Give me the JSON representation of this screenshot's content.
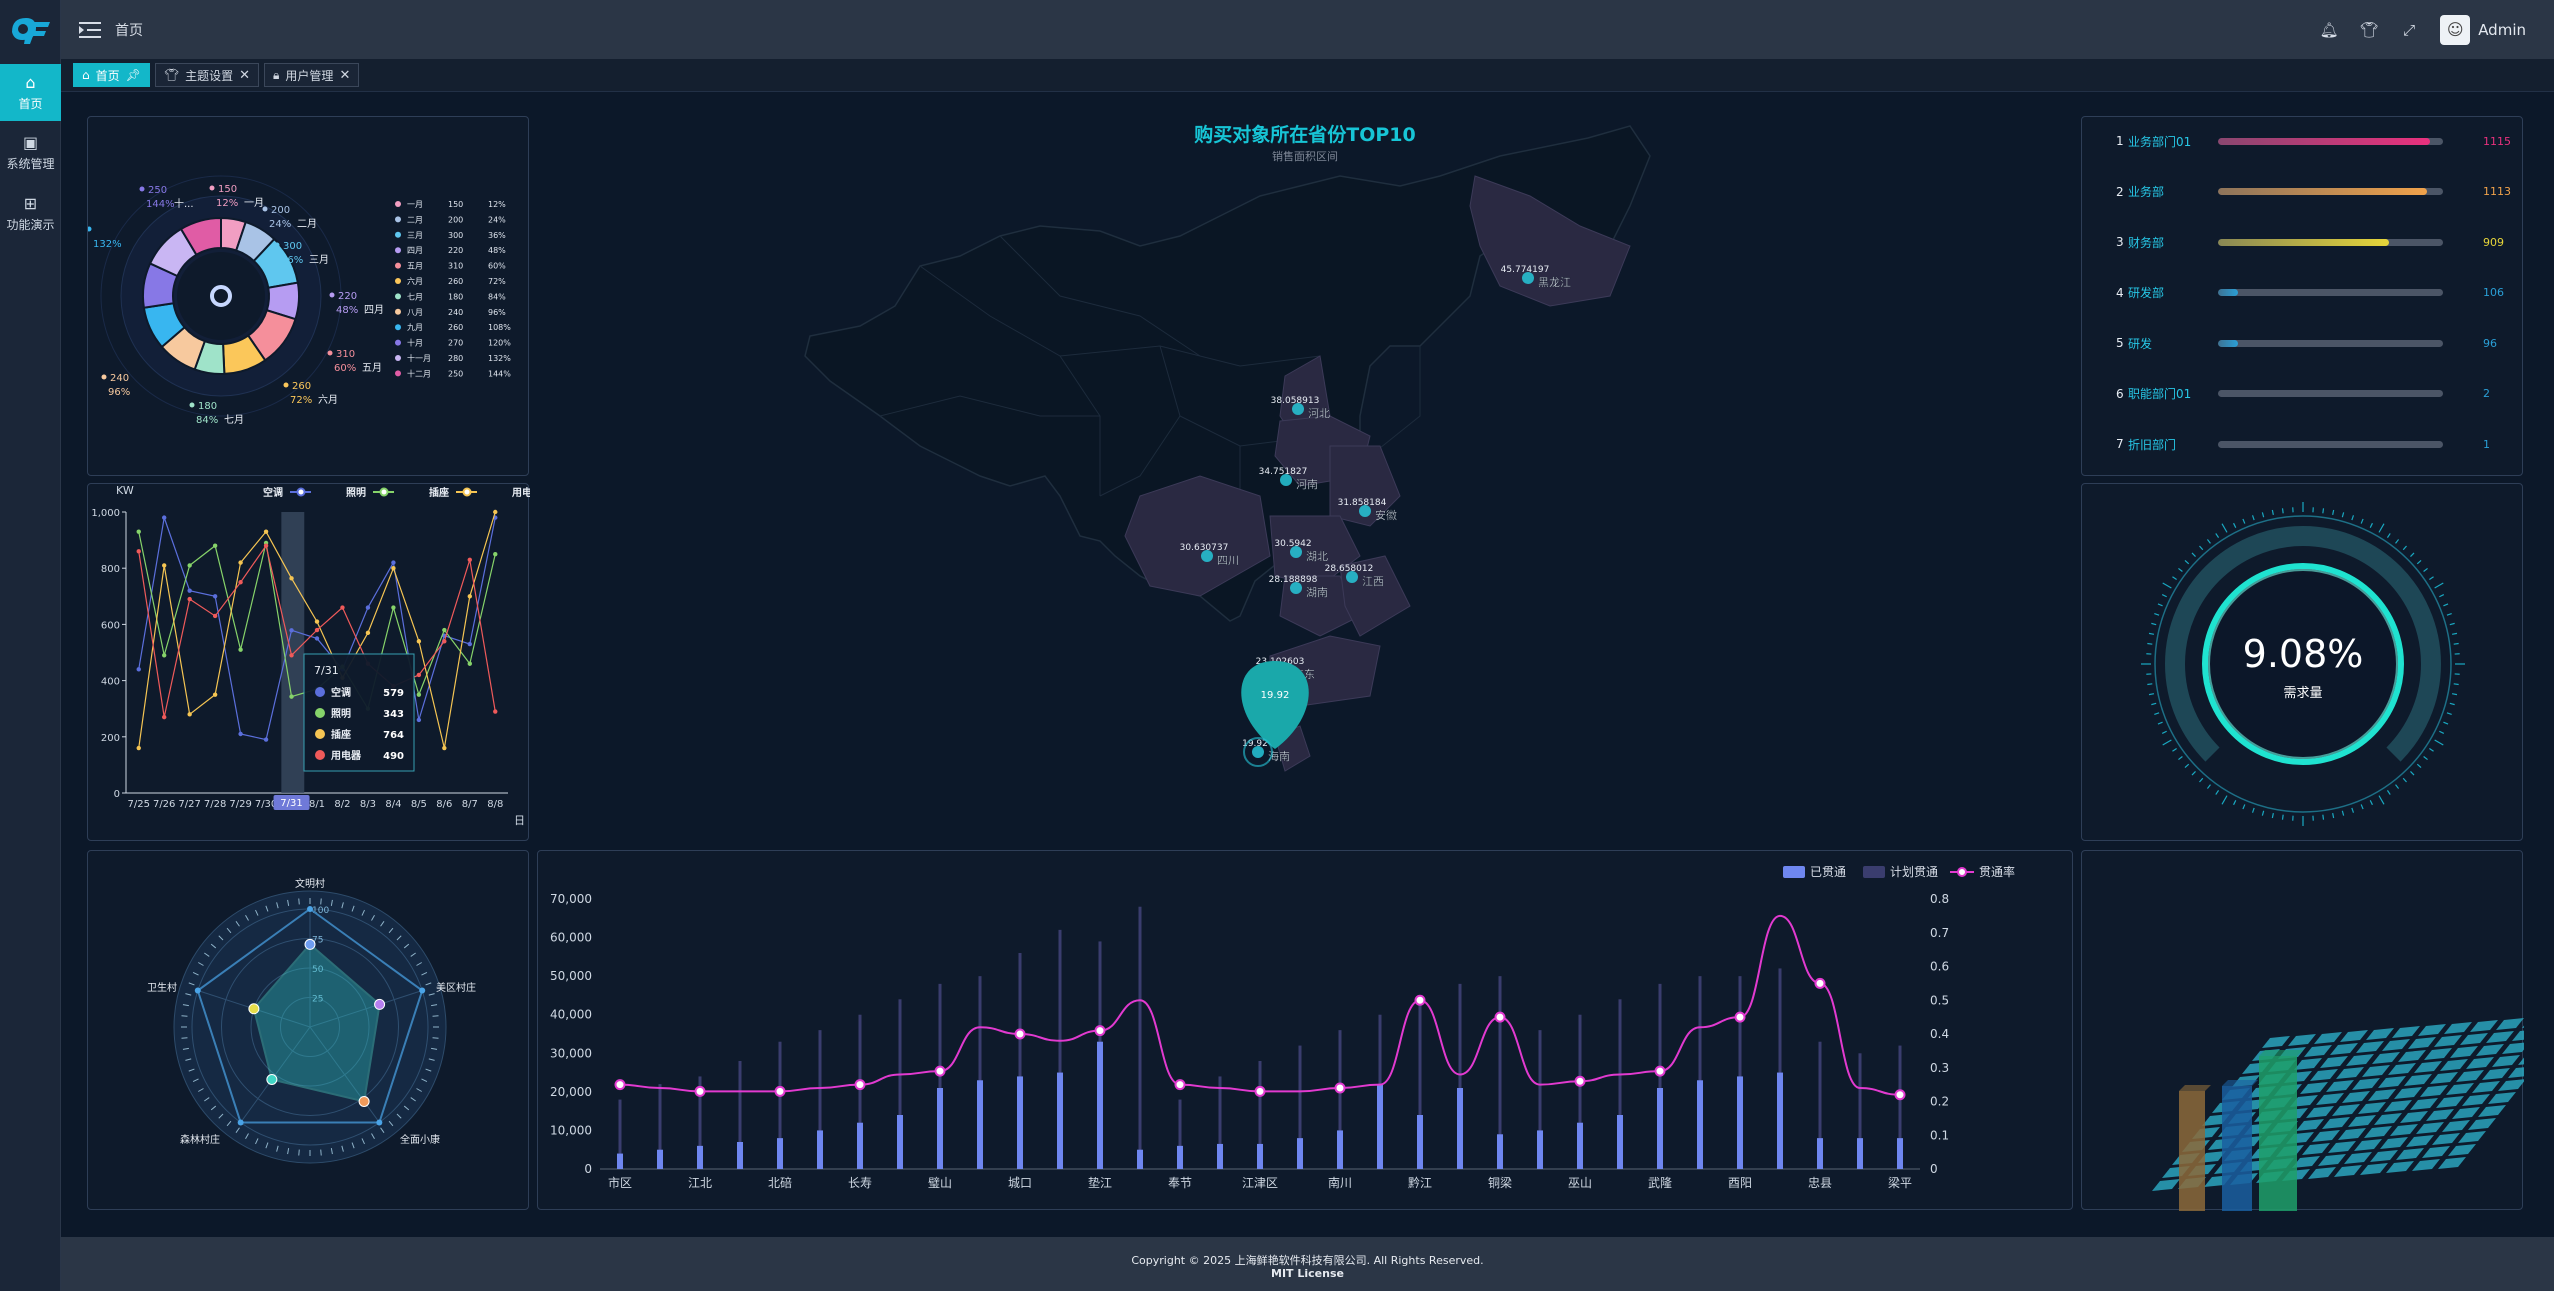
{
  "app": {
    "logo_text": "QF"
  },
  "rail": {
    "items": [
      {
        "label": "首页",
        "icon": "home-icon",
        "active": true
      },
      {
        "label": "系统管理",
        "icon": "system-icon",
        "active": false
      },
      {
        "label": "功能演示",
        "icon": "grid-icon",
        "active": false
      }
    ]
  },
  "topbar": {
    "breadcrumb": "首页",
    "user": "Admin"
  },
  "tabs": [
    {
      "label": "首页",
      "icon": "home-icon",
      "active": true,
      "pinned": true
    },
    {
      "label": "主题设置",
      "icon": "shirt-icon",
      "active": false
    },
    {
      "label": "用户管理",
      "icon": "lock-icon",
      "active": false
    }
  ],
  "donut": {
    "legend": [
      {
        "name": "一月",
        "value": 150,
        "pct": "12%",
        "color": "#f19ec2"
      },
      {
        "name": "二月",
        "value": 200,
        "pct": "24%",
        "color": "#a9c3e6"
      },
      {
        "name": "三月",
        "value": 300,
        "pct": "36%",
        "color": "#5fc7ef"
      },
      {
        "name": "四月",
        "value": 220,
        "pct": "48%",
        "color": "#b69cf2"
      },
      {
        "name": "五月",
        "value": 310,
        "pct": "60%",
        "color": "#f58f9b"
      },
      {
        "name": "六月",
        "value": 260,
        "pct": "72%",
        "color": "#fbc75a"
      },
      {
        "name": "七月",
        "value": 180,
        "pct": "84%",
        "color": "#9fe3c9"
      },
      {
        "name": "八月",
        "value": 240,
        "pct": "96%",
        "color": "#f7c99e"
      },
      {
        "name": "九月",
        "value": 260,
        "pct": "108%",
        "color": "#38b6f0"
      },
      {
        "name": "十月",
        "value": 270,
        "pct": "120%",
        "color": "#8778e6"
      },
      {
        "name": "十一月",
        "value": 280,
        "pct": "132%",
        "color": "#c9b6f3"
      },
      {
        "name": "十二月",
        "value": 250,
        "pct": "144%",
        "color": "#e05ca5"
      }
    ],
    "outer_labels": [
      {
        "value": "150",
        "pct": "12%",
        "name": "一月"
      },
      {
        "value": "200",
        "pct": "24%",
        "name": "二月"
      },
      {
        "value": "300",
        "pct": "36%",
        "name": "三月"
      },
      {
        "value": "220",
        "pct": "48%",
        "name": "四月"
      },
      {
        "value": "310",
        "pct": "60%",
        "name": "五月"
      },
      {
        "value": "260",
        "pct": "72%",
        "name": "六月"
      },
      {
        "value": "180",
        "pct": "84%",
        "name": "七月"
      },
      {
        "value": "240",
        "pct": "96%",
        "name": ""
      },
      {
        "value": "",
        "pct": "132%",
        "name": ""
      },
      {
        "value": "250",
        "pct": "144%",
        "name": "十..."
      }
    ]
  },
  "line_chart": {
    "unit": "KW",
    "x_unit": "日",
    "legend": [
      {
        "name": "空调",
        "color": "#5b6fdc"
      },
      {
        "name": "照明",
        "color": "#86d36a"
      },
      {
        "name": "插座",
        "color": "#f5c553"
      },
      {
        "name": "用电器",
        "color": "#ef5a5a"
      }
    ],
    "categories": [
      "7/25",
      "7/26",
      "7/27",
      "7/28",
      "7/29",
      "7/30",
      "7/31",
      "8/1",
      "8/2",
      "8/3",
      "8/4",
      "8/5",
      "8/6",
      "8/7",
      "8/8"
    ],
    "yticks": [
      "0",
      "200",
      "400",
      "600",
      "800",
      "1,000"
    ],
    "series": [
      {
        "name": "空调",
        "values": [
          440,
          980,
          720,
          700,
          210,
          190,
          579,
          550,
          440,
          660,
          820,
          260,
          560,
          530,
          980
        ]
      },
      {
        "name": "照明",
        "values": [
          930,
          490,
          810,
          880,
          510,
          890,
          343,
          370,
          450,
          300,
          660,
          350,
          580,
          460,
          850
        ]
      },
      {
        "name": "插座",
        "values": [
          160,
          810,
          280,
          350,
          820,
          930,
          764,
          610,
          410,
          570,
          800,
          540,
          160,
          700,
          1000
        ]
      },
      {
        "name": "用电器",
        "values": [
          860,
          270,
          690,
          630,
          750,
          880,
          490,
          580,
          660,
          460,
          380,
          420,
          540,
          830,
          290
        ]
      }
    ],
    "tooltip": {
      "title": "7/31",
      "rows": [
        {
          "name": "空调",
          "value": "579"
        },
        {
          "name": "照明",
          "value": "343"
        },
        {
          "name": "插座",
          "value": "764"
        },
        {
          "name": "用电器",
          "value": "490"
        }
      ]
    },
    "axis_pointer_label": "7/31"
  },
  "map": {
    "title": "购买对象所在省份TOP10",
    "subtitle": "销售面积区间",
    "points": [
      {
        "name": "黑龙江",
        "value": "45.774197"
      },
      {
        "name": "河北",
        "value": "38.058913"
      },
      {
        "name": "河南",
        "value": "34.751827"
      },
      {
        "name": "四川",
        "value": "30.630737"
      },
      {
        "name": "安徽",
        "value": "31.858184"
      },
      {
        "name": "湖北",
        "value": "30.5942"
      },
      {
        "name": "江西",
        "value": "28.658012"
      },
      {
        "name": "湖南",
        "value": "28.188898"
      },
      {
        "name": "广东",
        "value": "23.102603"
      },
      {
        "name": "海南",
        "value": "19.92"
      }
    ],
    "pin_value": "19.92"
  },
  "departments": [
    {
      "rank": "1",
      "name": "业务部门01",
      "value": "1115",
      "fraction": 0.94,
      "color": "#e9317e"
    },
    {
      "rank": "2",
      "name": "业务部",
      "value": "1113",
      "fraction": 0.93,
      "color": "#f0a24b"
    },
    {
      "rank": "3",
      "name": "财务部",
      "value": "909",
      "fraction": 0.76,
      "color": "#e6d53a"
    },
    {
      "rank": "4",
      "name": "研发部",
      "value": "106",
      "fraction": 0.09,
      "color": "#2a9fd6"
    },
    {
      "rank": "5",
      "name": "研发",
      "value": "96",
      "fraction": 0.08,
      "color": "#2a9fd6"
    },
    {
      "rank": "6",
      "name": "职能部门01",
      "value": "2",
      "fraction": 0.0,
      "color": "#2a9fd6"
    },
    {
      "rank": "7",
      "name": "折旧部门",
      "value": "1",
      "fraction": 0.0,
      "color": "#2a9fd6"
    }
  ],
  "gauge": {
    "value": "9.08%",
    "label": "需求量"
  },
  "radar": {
    "indicators": [
      "文明村",
      "美区村庄",
      "全面小康",
      "森林村庄",
      "卫生村"
    ],
    "ticks": [
      "25",
      "50",
      "75",
      "100"
    ],
    "values": [
      0.7,
      0.62,
      0.78,
      0.55,
      0.5
    ]
  },
  "bar_chart": {
    "legend": [
      {
        "name": "已贯通",
        "color": "#6f87f0"
      },
      {
        "name": "计划贯通",
        "color": "#3a3d6e"
      },
      {
        "name": "贯通率",
        "color": "#e23ad0"
      }
    ],
    "yticks_left": [
      "0",
      "10,000",
      "20,000",
      "30,000",
      "40,000",
      "50,000",
      "60,000",
      "70,000"
    ],
    "yticks_right": [
      "0",
      "0.1",
      "0.2",
      "0.3",
      "0.4",
      "0.5",
      "0.6",
      "0.7",
      "0.8"
    ],
    "xlabels": [
      "市区",
      "江北",
      "北碚",
      "长寿",
      "璧山",
      "城口",
      "垫江",
      "奉节",
      "江津区",
      "南川",
      "黔江",
      "铜梁",
      "巫山",
      "武隆",
      "酉阳",
      "忠县",
      "梁平"
    ],
    "categories": 33,
    "done": [
      4000,
      5000,
      6000,
      7000,
      8000,
      10000,
      12000,
      14000,
      21000,
      23000,
      24000,
      25000,
      33000,
      5000,
      6000,
      6500,
      6500,
      8000,
      10000,
      22000,
      14000,
      21000,
      9000,
      10000,
      12000,
      14000,
      21000,
      23000,
      24000,
      25000,
      8000,
      8000,
      8000
    ],
    "plan": [
      18000,
      22000,
      24000,
      28000,
      33000,
      36000,
      40000,
      44000,
      48000,
      50000,
      56000,
      62000,
      59000,
      68000,
      18000,
      24000,
      28000,
      32000,
      36000,
      40000,
      44000,
      48000,
      50000,
      36000,
      40000,
      44000,
      48000,
      50000,
      50000,
      52000,
      33000,
      30000,
      32000
    ],
    "rate": [
      0.25,
      0.24,
      0.23,
      0.23,
      0.23,
      0.24,
      0.25,
      0.28,
      0.29,
      0.42,
      0.4,
      0.38,
      0.41,
      0.5,
      0.25,
      0.24,
      0.23,
      0.23,
      0.24,
      0.25,
      0.5,
      0.28,
      0.45,
      0.25,
      0.26,
      0.28,
      0.29,
      0.42,
      0.45,
      0.75,
      0.55,
      0.24,
      0.22
    ]
  },
  "footer": {
    "copyright": "Copyright © 2025 上海鲜艳软件科技有限公司. All Rights Reserved.",
    "license": "MIT License"
  }
}
